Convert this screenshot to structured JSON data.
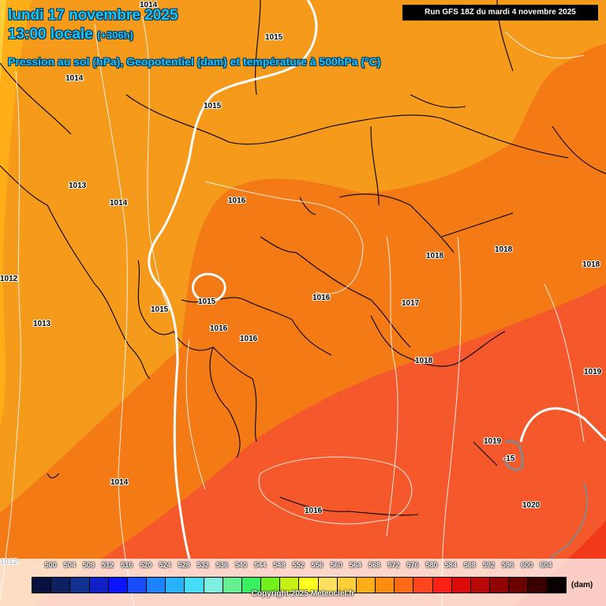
{
  "header": {
    "date_line": "lundi 17 novembre 2025",
    "time_line": "13:00 locale",
    "offset": "(+306h)",
    "subtitle": "Pression au sol (hPa), Geopotentiel (dam) et température à 500hPa (°C)",
    "run_info": "Run GFS 18Z du mardi 4 novembre 2025"
  },
  "pressure_labels": [
    "1014",
    "1015",
    "1014",
    "1015",
    "1013",
    "1014",
    "1016",
    "1012",
    "1015",
    "1015",
    "1013",
    "1016",
    "1016",
    "1016",
    "1018",
    "1018",
    "1018",
    "1017",
    "1018",
    "1019",
    "1019",
    "1014",
    "1016",
    "1020",
    "1012",
    "-15"
  ],
  "legend": {
    "ticks": [
      "500",
      "504",
      "508",
      "512",
      "516",
      "520",
      "524",
      "528",
      "532",
      "536",
      "540",
      "544",
      "548",
      "552",
      "556",
      "560",
      "564",
      "568",
      "572",
      "576",
      "580",
      "584",
      "588",
      "592",
      "596",
      "600",
      "604"
    ],
    "colors": [
      "#0a1140",
      "#0d2160",
      "#12308f",
      "#1020c8",
      "#0a14ff",
      "#1a4cff",
      "#1c82ff",
      "#26b2ff",
      "#43ddf7",
      "#7fefe0",
      "#66f090",
      "#39f060",
      "#74f01c",
      "#c8f014",
      "#ffff20",
      "#ffe060",
      "#ffcf3a",
      "#ffae18",
      "#ff8d10",
      "#ff6a14",
      "#ff4520",
      "#ff2214",
      "#dd0a0a",
      "#b80808",
      "#900404",
      "#6a0000",
      "#3a0000",
      "#080000"
    ],
    "unit": "(dam)"
  },
  "footer": {
    "copyright": "Copyright 2025 Meteociel.fr"
  }
}
